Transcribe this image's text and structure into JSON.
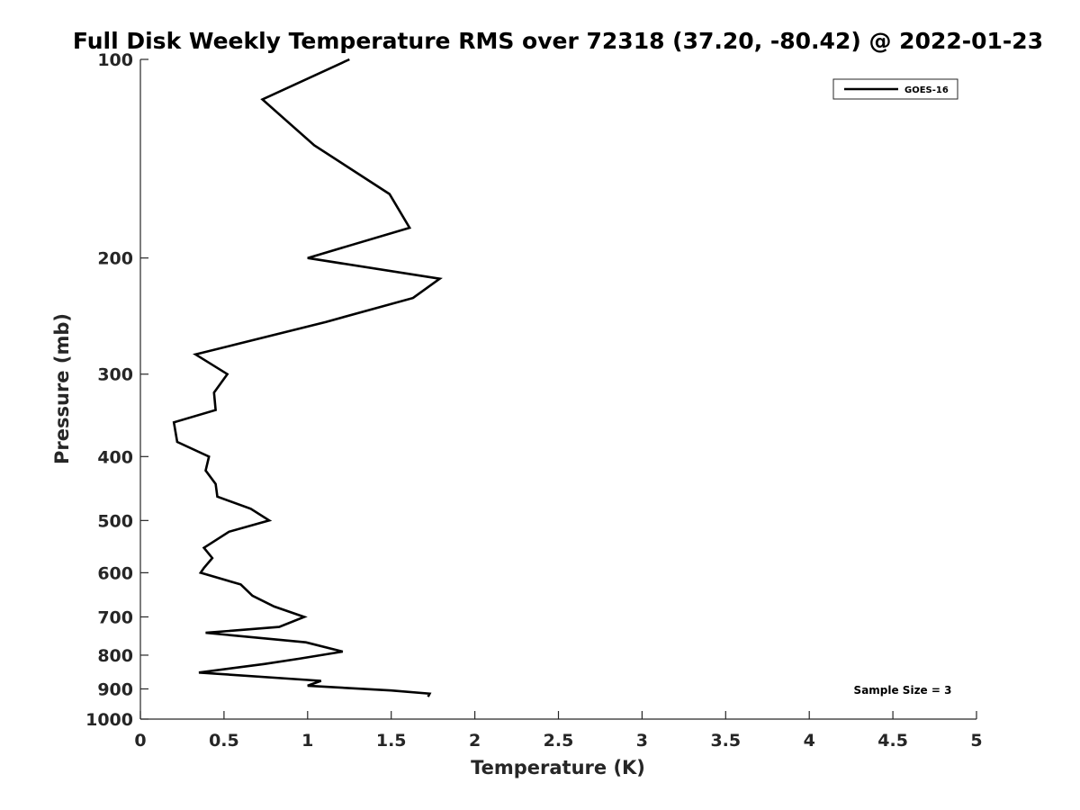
{
  "chart_data": {
    "type": "line",
    "title": "Full Disk Weekly Temperature RMS over 72318 (37.20, -80.42) @ 2022-01-23",
    "xlabel": "Temperature (K)",
    "ylabel": "Pressure (mb)",
    "xlim": [
      0,
      5
    ],
    "ylim": [
      100,
      1000
    ],
    "y_scale": "log",
    "y_reversed": true,
    "x_ticks": [
      "0",
      "0.5",
      "1",
      "1.5",
      "2",
      "2.5",
      "3",
      "3.5",
      "4",
      "4.5",
      "5"
    ],
    "y_ticks": [
      "100",
      "200",
      "300",
      "400",
      "500",
      "600",
      "700",
      "800",
      "900",
      "1000"
    ],
    "grid": false,
    "legend_position": "top-right",
    "annotation": "Sample Size = 3",
    "series": [
      {
        "name": "GOES-16",
        "color": "#000000",
        "points": [
          [
            1.25,
            100
          ],
          [
            0.73,
            115
          ],
          [
            1.04,
            135
          ],
          [
            1.49,
            160
          ],
          [
            1.61,
            180
          ],
          [
            1.0,
            200
          ],
          [
            1.79,
            215
          ],
          [
            1.63,
            230
          ],
          [
            1.11,
            250
          ],
          [
            0.33,
            280
          ],
          [
            0.52,
            300
          ],
          [
            0.44,
            320
          ],
          [
            0.45,
            340
          ],
          [
            0.2,
            355
          ],
          [
            0.22,
            380
          ],
          [
            0.41,
            400
          ],
          [
            0.39,
            420
          ],
          [
            0.45,
            440
          ],
          [
            0.46,
            460
          ],
          [
            0.66,
            480
          ],
          [
            0.77,
            500
          ],
          [
            0.53,
            520
          ],
          [
            0.38,
            550
          ],
          [
            0.43,
            570
          ],
          [
            0.38,
            590
          ],
          [
            0.36,
            600
          ],
          [
            0.6,
            625
          ],
          [
            0.67,
            650
          ],
          [
            0.8,
            675
          ],
          [
            0.98,
            700
          ],
          [
            0.83,
            725
          ],
          [
            0.39,
            740
          ],
          [
            0.99,
            765
          ],
          [
            1.21,
            790
          ],
          [
            0.95,
            810
          ],
          [
            0.74,
            825
          ],
          [
            0.35,
            850
          ],
          [
            1.08,
            875
          ],
          [
            1.0,
            890
          ],
          [
            1.5,
            905
          ],
          [
            1.73,
            915
          ],
          [
            1.72,
            925
          ]
        ]
      }
    ]
  }
}
